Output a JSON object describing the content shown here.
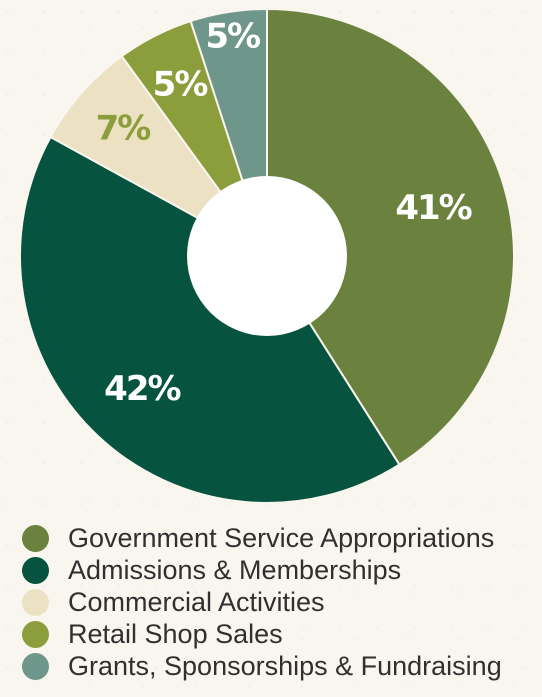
{
  "chart_data": {
    "type": "pie",
    "categories": [
      "Government Service Appropriations",
      "Admissions & Memberships",
      "Commercial Activities",
      "Retail Shop Sales",
      "Grants, Sponsorships & Fundraising"
    ],
    "values": [
      41,
      42,
      7,
      5,
      5
    ],
    "labels": [
      "41%",
      "42%",
      "7%",
      "5%",
      "5%"
    ],
    "colors": [
      "#6b823e",
      "#06543f",
      "#ede1c3",
      "#8c9e3c",
      "#6f968a"
    ],
    "label_colors": [
      "#ffffff",
      "#ffffff",
      "#8c9e3c",
      "#ffffff",
      "#ffffff"
    ],
    "donut": true,
    "legend_position": "bottom"
  }
}
